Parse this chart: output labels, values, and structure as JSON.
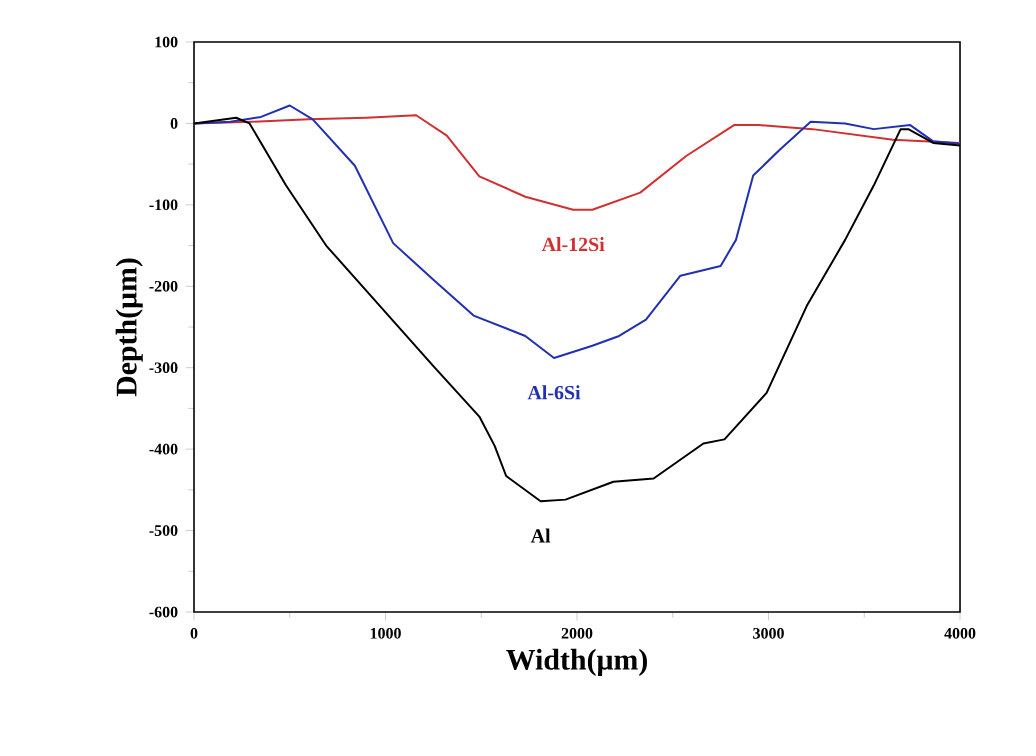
{
  "chart_data": {
    "type": "line",
    "xlabel": "Width(μm)",
    "ylabel": "Depth(μm)",
    "xlim": [
      0,
      4000
    ],
    "ylim": [
      -600,
      100
    ],
    "xticks": [
      0,
      1000,
      2000,
      3000,
      4000
    ],
    "yticks": [
      -600,
      -500,
      -400,
      -300,
      -200,
      -100,
      0,
      100
    ],
    "grid": false,
    "legend": false,
    "marker": "none",
    "line_style": "solid",
    "series": [
      {
        "name": "Al-12Si",
        "color": "#d03030",
        "x": [
          0,
          300,
          600,
          900,
          1160,
          1320,
          1490,
          1730,
          1980,
          2080,
          2330,
          2570,
          2820,
          2950,
          3230,
          3650,
          4000
        ],
        "values": [
          0,
          2,
          5,
          7,
          10,
          -15,
          -65,
          -90,
          -106,
          -106,
          -85,
          -40,
          -2,
          -2,
          -7,
          -20,
          -24
        ]
      },
      {
        "name": "Al-6Si",
        "color": "#2030b0",
        "x": [
          0,
          190,
          350,
          500,
          620,
          840,
          1040,
          1250,
          1460,
          1730,
          1880,
          2080,
          2220,
          2360,
          2540,
          2750,
          2830,
          2920,
          3060,
          3220,
          3400,
          3550,
          3740,
          3860,
          4000
        ],
        "values": [
          0,
          2,
          8,
          22,
          5,
          -52,
          -147,
          -192,
          -236,
          -261,
          -288,
          -273,
          -261,
          -241,
          -187,
          -175,
          -143,
          -64,
          -32,
          2,
          0,
          -7,
          -2,
          -22,
          -25
        ]
      },
      {
        "name": "Al",
        "color": "#000000",
        "x": [
          0,
          220,
          290,
          480,
          690,
          940,
          1250,
          1490,
          1570,
          1630,
          1810,
          1940,
          2190,
          2400,
          2660,
          2770,
          2990,
          3200,
          3400,
          3550,
          3690,
          3730,
          3860,
          4000
        ],
        "values": [
          0,
          7,
          0,
          -76,
          -150,
          -216,
          -298,
          -360,
          -396,
          -433,
          -464,
          -462,
          -440,
          -436,
          -393,
          -388,
          -331,
          -224,
          -143,
          -76,
          -7,
          -7,
          -24,
          -27
        ]
      }
    ]
  }
}
